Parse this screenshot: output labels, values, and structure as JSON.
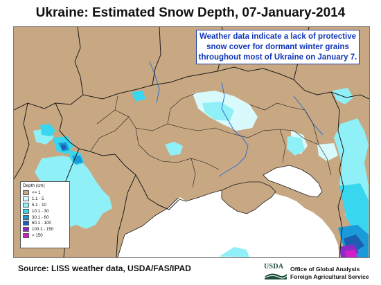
{
  "title": "Ukraine:  Estimated Snow Depth,  07-January-2014",
  "note": {
    "lines": [
      "Weather data indicate a lack of protective",
      "snow cover for dormant winter grains",
      "throughout most of Ukraine on January 7."
    ]
  },
  "legend": {
    "title": "Depth (cm)",
    "items": [
      {
        "label": "<= 1",
        "color": "#c8a883"
      },
      {
        "label": "1.1 - 5",
        "color": "#d8fafc"
      },
      {
        "label": "5.1 - 10",
        "color": "#8ff0f7"
      },
      {
        "label": "10.1 - 30",
        "color": "#39d7ef"
      },
      {
        "label": "30.1 - 60",
        "color": "#1a9ad8"
      },
      {
        "label": "60.1 - 100",
        "color": "#1b5fb3"
      },
      {
        "label": "100.1 - 150",
        "color": "#8a2bc6"
      },
      {
        "label": "> 150",
        "color": "#d31fc9"
      }
    ]
  },
  "source": "Source: LISS weather data, USDA/FAS/IPAD",
  "logo": {
    "mark": "USDA",
    "line1": "Office of Global Analysis",
    "line2": "Foreign Agricultural Service"
  },
  "colors": {
    "land": "#c8a883",
    "sea": "#ffffff",
    "border": "#1a1a1a",
    "river": "#2a6fd0",
    "note_text": "#1036b8"
  }
}
